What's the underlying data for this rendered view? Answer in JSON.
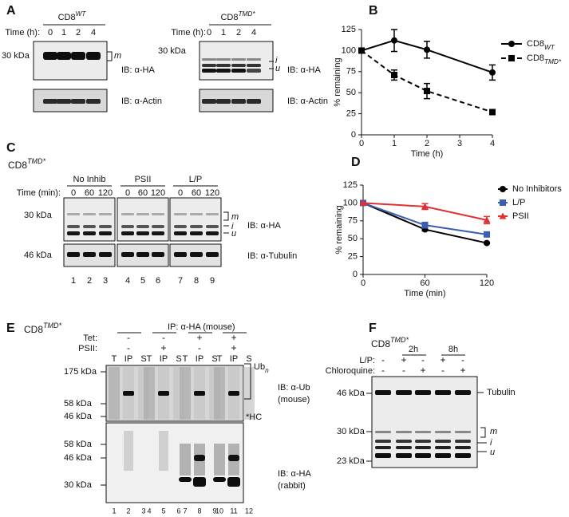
{
  "panel_labels": [
    "A",
    "B",
    "C",
    "D",
    "E",
    "F"
  ],
  "chart_data": [
    {
      "type": "line",
      "xlabel": "Time (h)",
      "ylabel": "% remaining",
      "x": [
        0,
        1,
        2,
        4
      ],
      "xlim": [
        0,
        4
      ],
      "xticks": [
        0,
        1,
        2,
        3,
        4
      ],
      "ylim": [
        0,
        125
      ],
      "yticks": [
        0,
        25,
        50,
        75,
        100,
        125
      ],
      "series": [
        {
          "name": "CD8",
          "name_sup": "WT",
          "color": "#000000",
          "line_style": "solid",
          "marker": "circle",
          "values": [
            100,
            112,
            101,
            74
          ],
          "errors": [
            0,
            13,
            10,
            9
          ]
        },
        {
          "name": "CD8",
          "name_sup": "TMD*",
          "color": "#000000",
          "line_style": "dashed",
          "marker": "square",
          "values": [
            100,
            71,
            52,
            27
          ],
          "errors": [
            0,
            6,
            9,
            3
          ]
        }
      ]
    },
    {
      "type": "line",
      "xlabel": "Time (min)",
      "ylabel": "% remaining",
      "x": [
        0,
        60,
        120
      ],
      "xlim": [
        0,
        120
      ],
      "xticks": [
        0,
        60,
        120
      ],
      "ylim": [
        0,
        125
      ],
      "yticks": [
        0,
        25,
        50,
        75,
        100,
        125
      ],
      "series": [
        {
          "name": "No Inhibitors",
          "color": "#000000",
          "line_style": "solid",
          "marker": "circle",
          "values": [
            100,
            63,
            44
          ],
          "errors": [
            0,
            2,
            1
          ]
        },
        {
          "name": "L/P",
          "color": "#3a5fb0",
          "line_style": "solid",
          "marker": "square",
          "values": [
            100,
            69,
            56
          ],
          "errors": [
            0,
            4,
            3
          ]
        },
        {
          "name": "PSII",
          "color": "#e03030",
          "line_style": "solid",
          "marker": "triangle",
          "values": [
            100,
            95,
            76
          ],
          "errors": [
            0,
            4,
            5
          ]
        }
      ]
    }
  ],
  "panel_a": {
    "left": {
      "label": {
        "text": "CD8",
        "sup": "WT"
      },
      "time_label": "Time (h):",
      "lanes": [
        "0",
        "1",
        "2",
        "4"
      ],
      "marker": "30 kDa",
      "bands": [
        "m"
      ],
      "ib_top": "IB: α-HA",
      "ib_bottom": "IB: α-Actin"
    },
    "right": {
      "label": {
        "text": "CD8",
        "sup": "TMD*"
      },
      "time_label": "Time (h):",
      "lanes": [
        "0",
        "1",
        "2",
        "4"
      ],
      "marker": "30 kDa",
      "bands": [
        "i",
        "u"
      ],
      "ib_top": "IB: α-HA",
      "ib_bottom": "IB: α-Actin"
    }
  },
  "panel_c": {
    "label": {
      "text": "CD8",
      "sup": "TMD*"
    },
    "conditions": [
      "No Inhib",
      "PSII",
      "L/P"
    ],
    "time_label": "Time (min):",
    "times": [
      "0",
      "60",
      "120"
    ],
    "markers": [
      "30 kDa",
      "46 kDa"
    ],
    "bands": [
      "m",
      "i",
      "u"
    ],
    "ib_top": "IB: α-HA",
    "ib_bottom": "IB: α-Tubulin",
    "lanes": [
      "1",
      "2",
      "3",
      "4",
      "5",
      "6",
      "7",
      "8",
      "9"
    ]
  },
  "panel_e": {
    "label": {
      "text": "CD8",
      "sup": "TMD*"
    },
    "ip": "IP: α-HA (mouse)",
    "rows": [
      {
        "name": "Tet:",
        "signs": [
          "-",
          "-",
          "+",
          "+"
        ]
      },
      {
        "name": "PSII:",
        "signs": [
          "-",
          "+",
          "-",
          "+"
        ]
      }
    ],
    "fractions": [
      "T",
      "IP",
      "S"
    ],
    "markers_top": [
      "175 kDa",
      "58 kDa",
      "46 kDa"
    ],
    "markers_bottom": [
      "58 kDa",
      "46 kDa",
      "30 kDa"
    ],
    "ub": {
      "text": "Ub",
      "sub": "n"
    },
    "hc": "*HC",
    "ib_top": [
      "IB: α-Ub",
      "(mouse)"
    ],
    "ib_bottom": [
      "IB: α-HA",
      "(rabbit)"
    ],
    "lanes": [
      "1",
      "2",
      "3",
      "4",
      "5",
      "6",
      "7",
      "8",
      "9",
      "10",
      "11",
      "12"
    ]
  },
  "panel_f": {
    "label": {
      "text": "CD8",
      "sup": "TMD*"
    },
    "times": [
      "2h",
      "8h"
    ],
    "rows": [
      {
        "name": "L/P:",
        "signs": [
          "-",
          "+",
          "-",
          "+",
          "-"
        ]
      },
      {
        "name": "Chloroquine:",
        "signs": [
          "-",
          "-",
          "+",
          "-",
          "+"
        ]
      }
    ],
    "markers": [
      "46 kDa",
      "30 kDa",
      "23 kDa"
    ],
    "tubulin": "Tubulin",
    "bands": [
      "m",
      "i",
      "u"
    ]
  }
}
